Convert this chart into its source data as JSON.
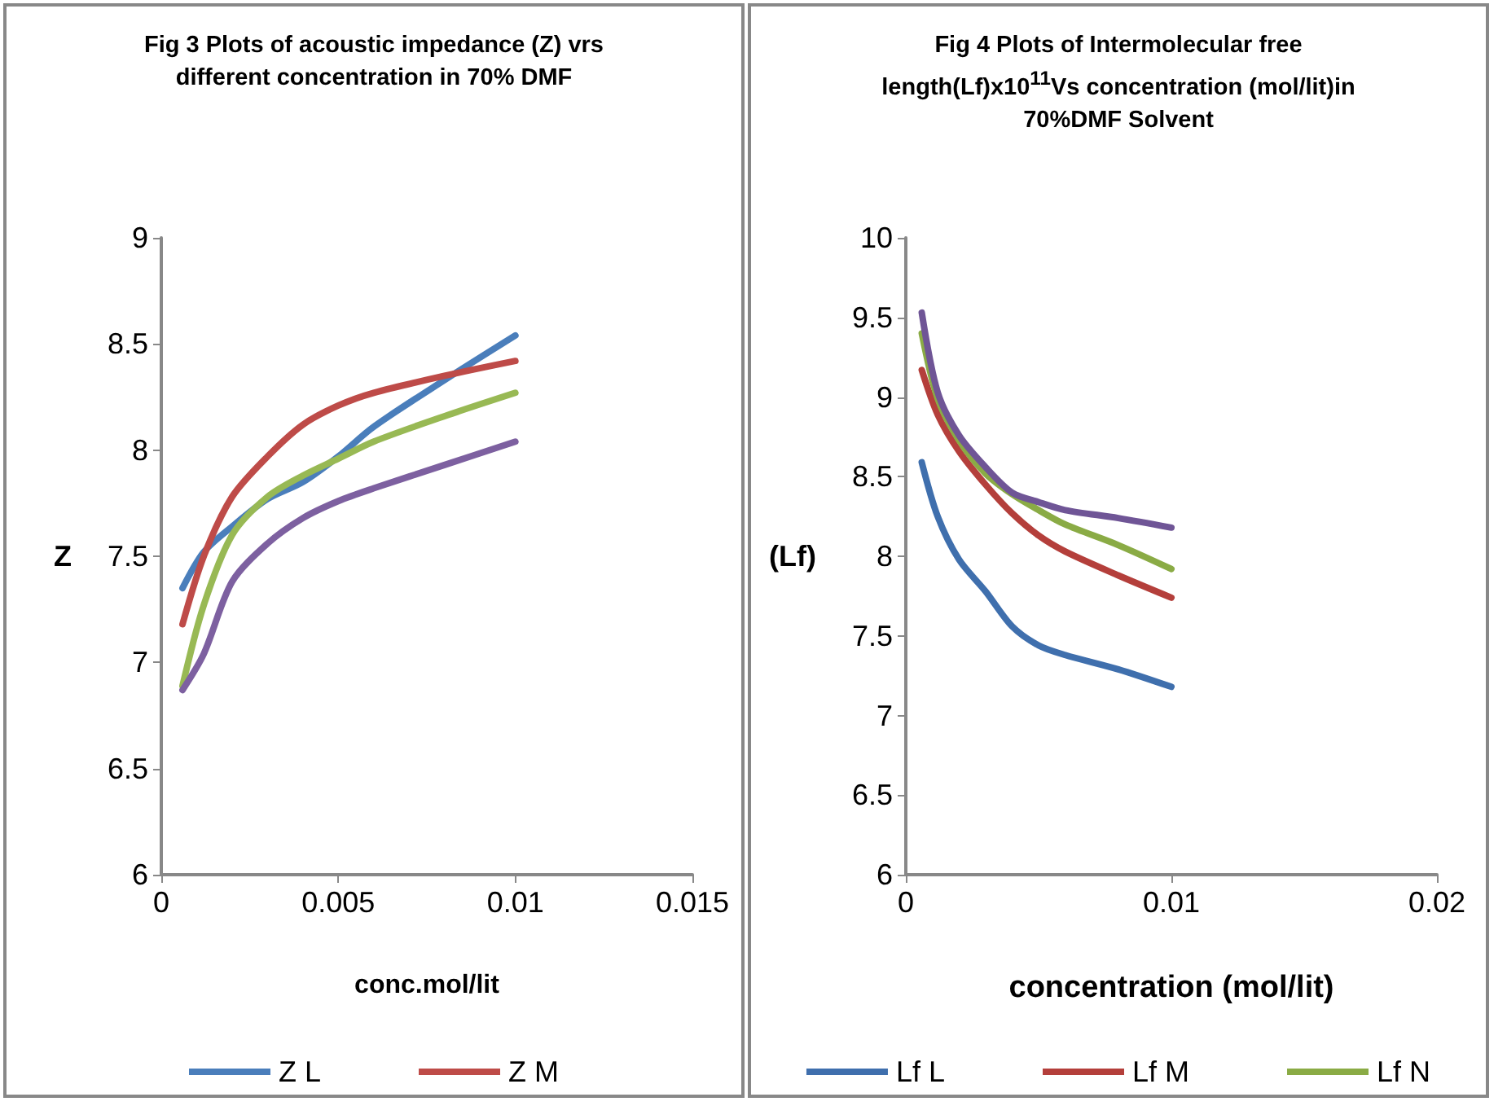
{
  "chart_data": [
    {
      "type": "line",
      "title": "Fig 3 Plots of acoustic impedance (Z) vrs different concentration in 70% DMF",
      "xlabel": "conc.mol/lit",
      "ylabel": "Z",
      "x": [
        0.0006,
        0.0012,
        0.002,
        0.003,
        0.004,
        0.005,
        0.006,
        0.008,
        0.01
      ],
      "series": [
        {
          "name": "Z L",
          "color": "#4a7ebb",
          "values": [
            7.35,
            7.52,
            7.64,
            7.77,
            7.85,
            7.97,
            8.11,
            8.33,
            8.54
          ]
        },
        {
          "name": "Z M",
          "color": "#be4b48",
          "values": [
            7.18,
            7.5,
            7.78,
            7.97,
            8.12,
            8.21,
            8.27,
            8.35,
            8.42
          ]
        },
        {
          "color": "#98b954",
          "values": [
            6.89,
            7.27,
            7.6,
            7.78,
            7.88,
            7.96,
            8.04,
            8.16,
            8.27
          ]
        },
        {
          "color": "#7d60a0",
          "values": [
            6.87,
            7.04,
            7.38,
            7.56,
            7.68,
            7.76,
            7.82,
            7.93,
            8.04
          ]
        }
      ],
      "xlim": [
        0,
        0.015
      ],
      "xticks": [
        0,
        0.005,
        0.01,
        0.015
      ],
      "ylim": [
        6,
        9
      ],
      "yticks": [
        6,
        6.5,
        7,
        7.5,
        8,
        8.5,
        9
      ],
      "grid": false,
      "legend": "bottom",
      "marker": "none",
      "line_style": "solid"
    },
    {
      "type": "line",
      "title": "Fig 4 Plots of Intermolecular free length(Lf)x10$^{11}$Vs concentration (mol/lit)in 70%DMF Solvent",
      "xlabel": "concentration (mol/lit)",
      "ylabel": "(Lf)",
      "x": [
        0.0006,
        0.0012,
        0.002,
        0.003,
        0.004,
        0.005,
        0.006,
        0.008,
        0.01
      ],
      "series": [
        {
          "name": "Lf L",
          "color": "#3f6fad",
          "values": [
            8.59,
            8.25,
            7.98,
            7.78,
            7.56,
            7.44,
            7.38,
            7.29,
            7.18
          ]
        },
        {
          "name": "Lf M",
          "color": "#b43f3b",
          "values": [
            9.17,
            8.89,
            8.66,
            8.45,
            8.27,
            8.13,
            8.03,
            7.88,
            7.74
          ]
        },
        {
          "name": "Lf N",
          "color": "#8aab45",
          "values": [
            9.4,
            8.99,
            8.73,
            8.52,
            8.39,
            8.29,
            8.2,
            8.07,
            7.92
          ]
        },
        {
          "color": "#6f5596",
          "values": [
            9.53,
            9.03,
            8.76,
            8.56,
            8.4,
            8.34,
            8.29,
            8.24,
            8.18
          ]
        }
      ],
      "xlim": [
        0,
        0.02
      ],
      "xticks": [
        0,
        0.01,
        0.02
      ],
      "ylim": [
        6,
        10
      ],
      "yticks": [
        6,
        6.5,
        7,
        7.5,
        8,
        8.5,
        9,
        9.5,
        10
      ],
      "grid": false,
      "legend": "bottom",
      "marker": "none",
      "line_style": "solid"
    }
  ]
}
